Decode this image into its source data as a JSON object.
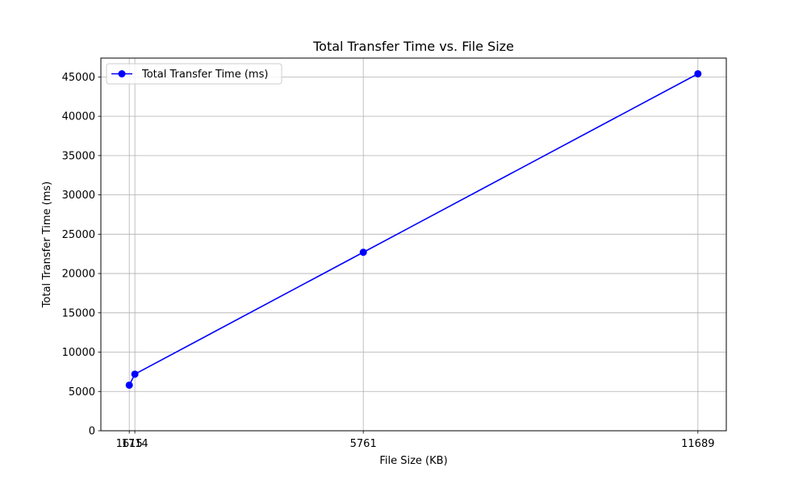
{
  "chart_data": {
    "type": "line",
    "title": "Total Transfer Time vs. File Size",
    "xlabel": "File Size (KB)",
    "ylabel": "Total Transfer Time (ms)",
    "x": [
      1615,
      1714,
      5761,
      11689
    ],
    "x_tick_labels": [
      "1615",
      "1714",
      "5761",
      "11689"
    ],
    "series": [
      {
        "name": "Total Transfer Time (ms)",
        "color": "#0000ff",
        "marker": "circle",
        "values": [
          5800,
          7200,
          22700,
          45400
        ]
      }
    ],
    "xlim": [
      1112,
      12192
    ],
    "ylim": [
      0,
      47400
    ],
    "y_ticks": [
      0,
      5000,
      10000,
      15000,
      20000,
      25000,
      30000,
      35000,
      40000,
      45000
    ],
    "grid": true,
    "legend_position": "upper-left"
  }
}
